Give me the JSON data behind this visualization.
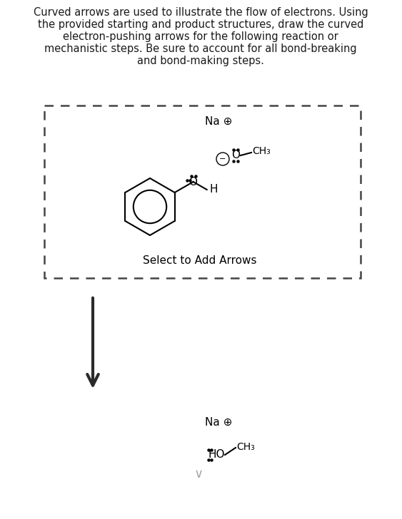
{
  "title_text_lines": [
    "Curved arrows are used to illustrate the flow of electrons. Using",
    "the provided starting and product structures, draw the curved",
    "electron-pushing arrows for the following reaction or",
    "mechanistic steps. Be sure to account for all bond-breaking",
    "and bond-making steps."
  ],
  "title_fontsize": 10.5,
  "bg_color": "#ffffff",
  "text_color": "#1a1a1a",
  "box_dash_color": "#444444",
  "select_text": "Select to Add Arrows",
  "na_plus": "Na ⊕",
  "ch3": "CH₃",
  "h_label": "H",
  "ho_label": "HO"
}
